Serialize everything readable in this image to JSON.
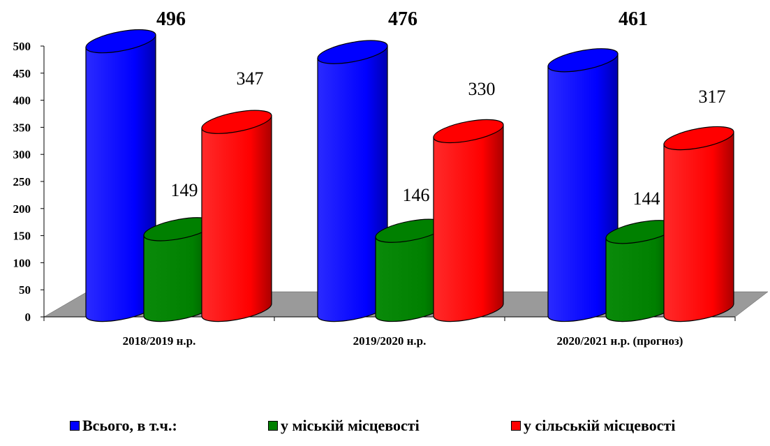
{
  "chart_data": {
    "type": "bar",
    "categories": [
      "2018/2019 н.р.",
      "2019/2020 н.р.",
      "2020/2021 н.р. (прогноз)"
    ],
    "series": [
      {
        "name": "Всього, в т.ч.:",
        "values": [
          496,
          476,
          461
        ],
        "color": "#0000ff"
      },
      {
        "name": "у міській місцевості",
        "values": [
          149,
          146,
          144
        ],
        "color": "#008000"
      },
      {
        "name": "у сільській місцевості",
        "values": [
          347,
          330,
          317
        ],
        "color": "#ff0000"
      }
    ],
    "ylim": [
      0,
      500
    ],
    "yticks": [
      0,
      50,
      100,
      150,
      200,
      250,
      300,
      350,
      400,
      450,
      500
    ],
    "data_labels": {
      "total": [
        "496",
        "476",
        "461"
      ],
      "urban": [
        "149",
        "146",
        "144"
      ],
      "rural": [
        "347",
        "330",
        "317"
      ]
    },
    "grid": false,
    "legend_position": "bottom",
    "style": "3d-cylinder"
  }
}
